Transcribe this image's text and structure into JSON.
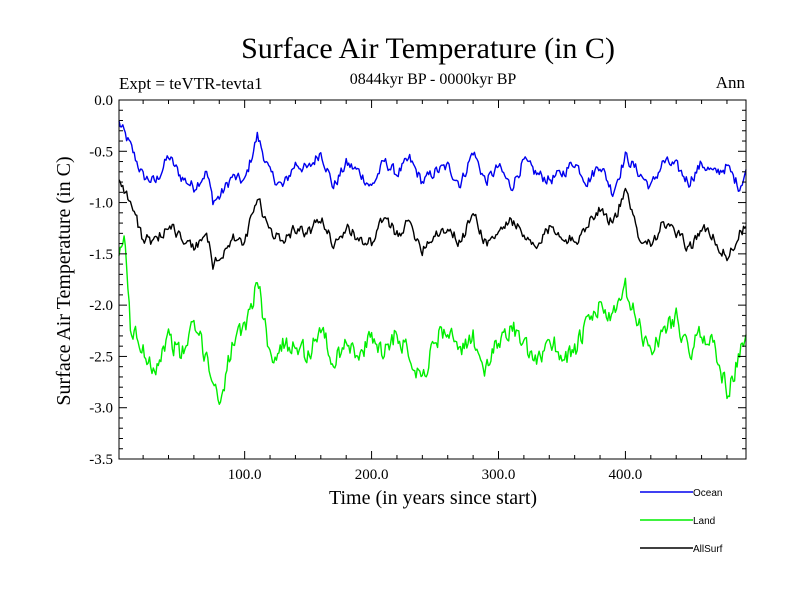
{
  "chart_data": {
    "type": "line",
    "title": "Surface Air Temperature (in C)",
    "subtitle": "0844kyr BP - 0000kyr BP",
    "experiment_label": "Expt = teVTR-tevta1",
    "season_label": "Ann",
    "xlabel": "Time (in years since start)",
    "ylabel": "Surface Air Temperature (in C)",
    "xlim": [
      1,
      495
    ],
    "ylim": [
      -3.5,
      0.0
    ],
    "x_ticks": [
      100,
      200,
      300,
      400
    ],
    "x_tick_labels": [
      "100.0",
      "200.0",
      "300.0",
      "400.0"
    ],
    "y_ticks": [
      0.0,
      -0.5,
      -1.0,
      -1.5,
      -2.0,
      -2.5,
      -3.0,
      -3.5
    ],
    "y_tick_labels": [
      "0.0",
      "-0.5",
      "-1.0",
      "-1.5",
      "-2.0",
      "-2.5",
      "-3.0",
      "-3.5"
    ],
    "series": [
      {
        "name": "Ocean",
        "color": "#0000ee",
        "x": [
          1,
          10,
          20,
          30,
          40,
          50,
          60,
          70,
          75,
          80,
          90,
          100,
          110,
          120,
          130,
          140,
          150,
          160,
          170,
          180,
          190,
          200,
          210,
          220,
          230,
          240,
          250,
          260,
          270,
          280,
          290,
          300,
          310,
          320,
          330,
          340,
          350,
          360,
          370,
          380,
          390,
          400,
          410,
          420,
          430,
          440,
          450,
          460,
          470,
          480,
          490,
          495
        ],
        "values": [
          -0.22,
          -0.45,
          -0.75,
          -0.8,
          -0.55,
          -0.75,
          -0.85,
          -0.7,
          -0.98,
          -0.95,
          -0.75,
          -0.8,
          -0.35,
          -0.72,
          -0.85,
          -0.62,
          -0.68,
          -0.5,
          -0.85,
          -0.62,
          -0.7,
          -0.85,
          -0.6,
          -0.72,
          -0.58,
          -0.8,
          -0.7,
          -0.65,
          -0.82,
          -0.5,
          -0.8,
          -0.65,
          -0.85,
          -0.6,
          -0.72,
          -0.78,
          -0.72,
          -0.6,
          -0.8,
          -0.62,
          -0.9,
          -0.55,
          -0.7,
          -0.85,
          -0.6,
          -0.65,
          -0.8,
          -0.62,
          -0.72,
          -0.65,
          -0.85,
          -0.68
        ]
      },
      {
        "name": "Land",
        "color": "#00ee00",
        "x": [
          1,
          5,
          10,
          20,
          30,
          40,
          50,
          60,
          70,
          80,
          90,
          100,
          110,
          120,
          130,
          140,
          150,
          160,
          170,
          180,
          190,
          200,
          210,
          220,
          230,
          240,
          250,
          260,
          270,
          280,
          290,
          300,
          310,
          320,
          330,
          340,
          350,
          360,
          370,
          380,
          390,
          400,
          410,
          420,
          430,
          440,
          450,
          460,
          470,
          480,
          490,
          495
        ],
        "values": [
          -1.6,
          -1.3,
          -2.2,
          -2.45,
          -2.6,
          -2.3,
          -2.5,
          -2.2,
          -2.5,
          -2.95,
          -2.4,
          -2.25,
          -1.75,
          -2.5,
          -2.4,
          -2.35,
          -2.5,
          -2.2,
          -2.6,
          -2.3,
          -2.55,
          -2.3,
          -2.45,
          -2.25,
          -2.5,
          -2.7,
          -2.35,
          -2.2,
          -2.5,
          -2.3,
          -2.65,
          -2.35,
          -2.2,
          -2.4,
          -2.6,
          -2.3,
          -2.5,
          -2.45,
          -2.2,
          -2.0,
          -2.15,
          -1.85,
          -2.2,
          -2.45,
          -2.25,
          -2.1,
          -2.5,
          -2.25,
          -2.4,
          -2.85,
          -2.5,
          -2.3
        ]
      },
      {
        "name": "AllSurf",
        "color": "#000000",
        "x": [
          1,
          10,
          20,
          30,
          40,
          50,
          60,
          70,
          75,
          80,
          90,
          100,
          110,
          120,
          130,
          140,
          150,
          160,
          170,
          180,
          190,
          200,
          210,
          220,
          230,
          240,
          250,
          260,
          270,
          280,
          290,
          300,
          310,
          320,
          330,
          340,
          350,
          360,
          370,
          380,
          390,
          400,
          410,
          420,
          430,
          440,
          450,
          460,
          470,
          480,
          490,
          495
        ],
        "values": [
          -0.75,
          -1.0,
          -1.35,
          -1.4,
          -1.2,
          -1.35,
          -1.45,
          -1.3,
          -1.6,
          -1.55,
          -1.35,
          -1.4,
          -0.95,
          -1.3,
          -1.35,
          -1.25,
          -1.3,
          -1.15,
          -1.4,
          -1.25,
          -1.35,
          -1.4,
          -1.15,
          -1.3,
          -1.2,
          -1.45,
          -1.3,
          -1.25,
          -1.4,
          -1.1,
          -1.4,
          -1.3,
          -1.15,
          -1.35,
          -1.45,
          -1.25,
          -1.3,
          -1.4,
          -1.2,
          -1.05,
          -1.2,
          -0.9,
          -1.3,
          -1.4,
          -1.2,
          -1.3,
          -1.45,
          -1.25,
          -1.35,
          -1.55,
          -1.3,
          -1.25
        ]
      }
    ],
    "legend": {
      "placement": "bottom-right",
      "entries": [
        "Ocean",
        "Land",
        "AllSurf"
      ]
    }
  }
}
